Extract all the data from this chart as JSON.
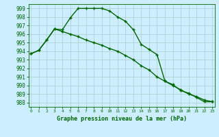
{
  "title": "Graphe pression niveau de la mer (hPa)",
  "bg_color": "#cceeff",
  "grid_color": "#aacccc",
  "line_color": "#006600",
  "x_ticks": [
    0,
    1,
    2,
    3,
    4,
    5,
    6,
    7,
    8,
    9,
    10,
    11,
    12,
    13,
    14,
    15,
    16,
    17,
    18,
    19,
    20,
    21,
    22,
    23
  ],
  "ylim": [
    987.5,
    999.5
  ],
  "yticks": [
    988,
    989,
    990,
    991,
    992,
    993,
    994,
    995,
    996,
    997,
    998,
    999
  ],
  "series1": [
    993.7,
    994.1,
    995.3,
    996.6,
    996.5,
    997.9,
    999.0,
    999.0,
    999.0,
    999.0,
    998.7,
    998.0,
    997.5,
    996.5,
    994.8,
    994.2,
    993.6,
    990.5,
    990.1,
    989.4,
    989.1,
    988.6,
    988.1,
    988.1
  ],
  "series2": [
    993.7,
    994.1,
    995.3,
    996.6,
    996.3,
    996.0,
    995.7,
    995.3,
    995.0,
    994.7,
    994.3,
    994.0,
    993.5,
    993.0,
    992.3,
    991.8,
    991.0,
    990.5,
    990.0,
    989.5,
    989.0,
    988.7,
    988.3,
    988.1
  ]
}
